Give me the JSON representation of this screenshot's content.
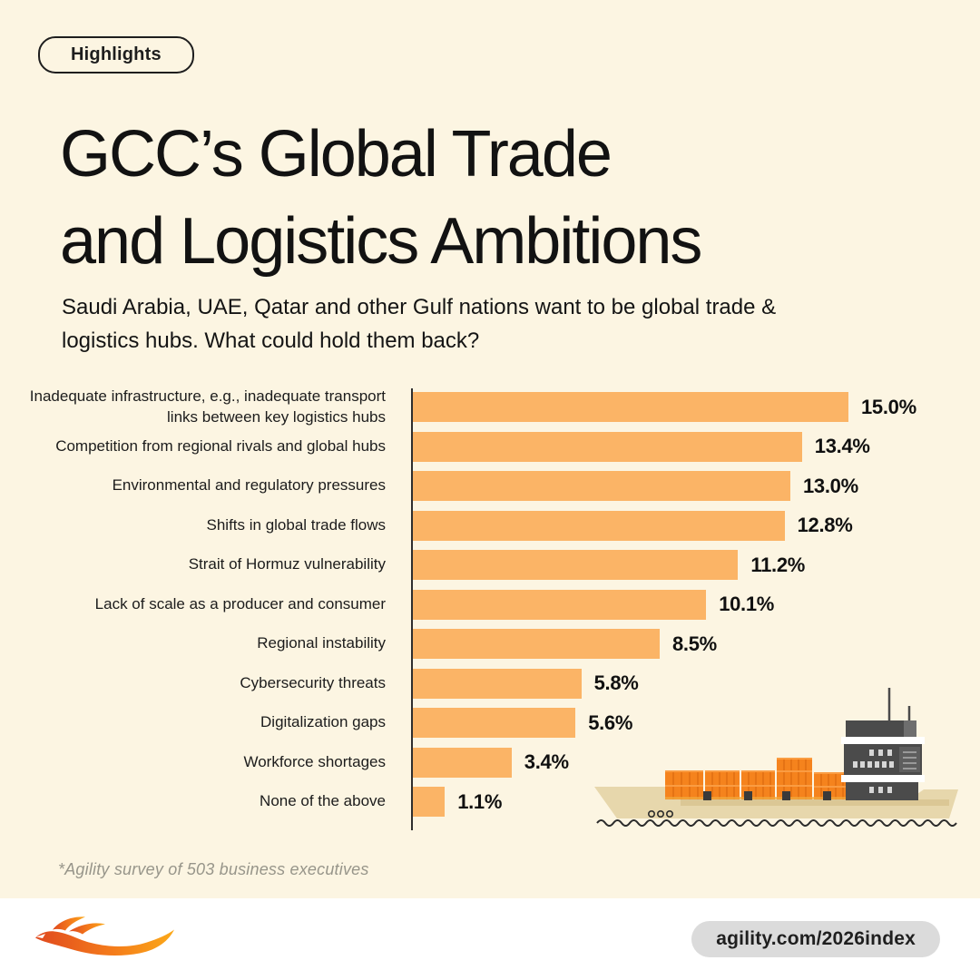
{
  "badge": {
    "label": "Highlights"
  },
  "title": {
    "line1": "GCC’s Global Trade",
    "line2": "and Logistics Ambitions"
  },
  "subtitle": "Saudi Arabia, UAE, Qatar and other Gulf nations want to be global trade & logistics hubs. What could hold them back?",
  "chart_data": {
    "type": "bar",
    "orientation": "horizontal",
    "categories": [
      "Inadequate infrastructure, e.g., inadequate transport links between key logistics hubs",
      "Competition from regional rivals and global hubs",
      "Environmental and regulatory pressures",
      "Shifts in global trade flows",
      "Strait of Hormuz vulnerability",
      "Lack of scale as a producer and consumer",
      "Regional instability",
      "Cybersecurity threats",
      "Digitalization gaps",
      "Workforce shortages",
      "None of the above"
    ],
    "values": [
      15.0,
      13.4,
      13.0,
      12.8,
      11.2,
      10.1,
      8.5,
      5.8,
      5.6,
      3.4,
      1.1
    ],
    "labels": [
      "15.0%",
      "13.4%",
      "13.0%",
      "12.8%",
      "11.2%",
      "10.1%",
      "8.5%",
      "5.8%",
      "5.6%",
      "3.4%",
      "1.1%"
    ],
    "unit": "%",
    "xlim": [
      0,
      15
    ],
    "bar_color": "#FBB466",
    "value_label_position": "outside-end",
    "grid": false,
    "legend": false
  },
  "footnote": "*Agility survey of 503 business executives",
  "footer": {
    "url_badge": "agility.com/2026index",
    "logo_name": "agility-phoenix-logo"
  },
  "illustration": "cargo-ship",
  "colors": {
    "background": "#FCF5E2",
    "bar": "#FBB466",
    "text": "#161616",
    "footnote": "#97958a",
    "axis": "#2e2e2e",
    "footer_bar": "#ffffff",
    "url_chip_bg": "#DBDBDB",
    "ship_hull": "#E7D7AC",
    "ship_hull_shade": "#DBC795",
    "container_orange": "#F5831D",
    "container_stripe": "#E06E12",
    "superstructure_gray": "#4B4B4B",
    "logo_gradient_start": "#E0491E",
    "logo_gradient_end": "#FBA919"
  }
}
